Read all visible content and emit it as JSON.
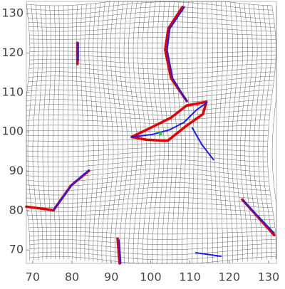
{
  "chart_data": {
    "type": "line",
    "xlim": [
      68.4,
      132
    ],
    "ylim": [
      66.6,
      133.1
    ],
    "xticks": [
      70,
      80,
      90,
      100,
      110,
      120,
      130
    ],
    "yticks": [
      70,
      80,
      90,
      100,
      110,
      120,
      130
    ],
    "series": [
      {
        "color": "#e00000",
        "x": [
          108.1,
          104.5,
          103.7,
          105.2,
          109.2,
          null,
          95.2,
          100.6,
          105.2,
          109.2,
          114.2,
          113.3,
          108.8,
          104.3,
          98.8,
          95.2,
          null,
          81.4,
          81.4,
          null,
          68.4,
          75.3,
          79.8,
          84.3,
          null,
          91.6,
          92.1,
          null,
          123.3,
          131.4
        ],
        "y": [
          131.7,
          126.2,
          120.8,
          113.6,
          107.8,
          null,
          98.7,
          101.3,
          103.6,
          106.7,
          107.6,
          104.5,
          101.3,
          97.7,
          98.0,
          98.7,
          null,
          122.6,
          117.2,
          null,
          81.0,
          80.1,
          86.4,
          90.1,
          null,
          72.9,
          66.6,
          null,
          82.8,
          73.8
        ]
      },
      {
        "color": "#1a1aff",
        "x": [
          108.6,
          104.9,
          104.2,
          105.6,
          109.2,
          null,
          95.2,
          100.3,
          104.8,
          108.5,
          111.6,
          114.3,
          null,
          110.6,
          113.0,
          116.0,
          null,
          81.6,
          81.6,
          null,
          75.3,
          80.0,
          84.3,
          null,
          92.0,
          92.4,
          null,
          123.6,
          131.4,
          null,
          111.5,
          117.9
        ],
        "y": [
          131.7,
          126.2,
          120.8,
          113.6,
          107.8,
          null,
          98.7,
          99.3,
          100.5,
          102.4,
          105.5,
          107.4,
          null,
          101.0,
          96.8,
          92.9,
          null,
          122.6,
          118.0,
          null,
          80.1,
          86.6,
          90.3,
          null,
          72.5,
          66.6,
          null,
          82.5,
          74.3,
          null,
          69.3,
          68.4
        ]
      },
      {
        "color": "#22dd22",
        "x": [
          102.5
        ],
        "y": [
          99.5
        ]
      }
    ]
  }
}
